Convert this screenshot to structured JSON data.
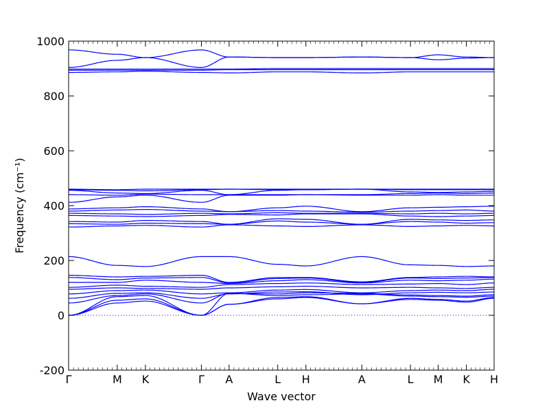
{
  "chart_data": {
    "type": "line",
    "xlabel": "Wave vector",
    "ylabel": "Frequency (cm⁻¹)",
    "ylim": [
      -200,
      1000
    ],
    "yticks": [
      -200,
      0,
      200,
      400,
      600,
      800,
      1000
    ],
    "grid": false,
    "legend": "none",
    "line_color": "#0000ff",
    "zero_line_color": "#0000ff",
    "path_points": [
      {
        "label": "Γ",
        "x": 0.0
      },
      {
        "label": "M",
        "x": 1.0
      },
      {
        "label": "K",
        "x": 1.58
      },
      {
        "label": "Γ",
        "x": 2.73
      },
      {
        "label": "A",
        "x": 3.3
      },
      {
        "label": "L",
        "x": 4.3
      },
      {
        "label": "H",
        "x": 4.88
      },
      {
        "label": "A",
        "x": 6.03
      },
      {
        "label": "L",
        "x": 7.03
      },
      {
        "label": "M",
        "x": 7.6
      },
      {
        "label": "K",
        "x": 8.18
      },
      {
        "label": "H",
        "x": 8.75
      }
    ],
    "bands": [
      {
        "x": [
          0,
          1,
          1.58,
          2.73,
          3.3,
          4.3,
          4.88,
          6.03,
          7.03,
          7.6,
          8.18,
          8.75
        ],
        "y": [
          0,
          45,
          52,
          0,
          40,
          60,
          65,
          42,
          58,
          55,
          48,
          62
        ]
      },
      {
        "x": [
          0,
          1,
          1.58,
          2.73,
          3.3,
          4.3,
          4.88,
          6.03,
          7.03,
          7.6,
          8.18,
          8.75
        ],
        "y": [
          0,
          55,
          60,
          0,
          40,
          65,
          68,
          42,
          62,
          58,
          52,
          65
        ]
      },
      {
        "x": [
          0,
          1,
          1.58,
          2.73,
          3.3,
          4.3,
          4.88,
          6.03,
          7.03,
          7.6,
          8.18,
          8.75
        ],
        "y": [
          0,
          68,
          72,
          0,
          80,
          72,
          75,
          78,
          70,
          68,
          66,
          70
        ]
      },
      {
        "x": [
          0,
          1,
          1.58,
          2.73,
          3.3,
          4.3,
          4.88,
          6.03,
          7.03,
          7.6,
          8.18,
          8.75
        ],
        "y": [
          45,
          72,
          78,
          45,
          80,
          78,
          82,
          80,
          74,
          72,
          70,
          75
        ]
      },
      {
        "x": [
          0,
          1,
          1.58,
          2.73,
          3.3,
          4.3,
          4.88,
          6.03,
          7.03,
          7.6,
          8.18,
          8.75
        ],
        "y": [
          62,
          80,
          82,
          62,
          78,
          85,
          86,
          75,
          82,
          84,
          82,
          85
        ]
      },
      {
        "x": [
          0,
          1,
          1.58,
          2.73,
          3.3,
          4.3,
          4.88,
          6.03,
          7.03,
          7.6,
          8.18,
          8.75
        ],
        "y": [
          78,
          90,
          92,
          78,
          82,
          92,
          94,
          82,
          90,
          92,
          90,
          95
        ]
      },
      {
        "x": [
          0,
          1,
          1.58,
          2.73,
          3.3,
          4.3,
          4.88,
          6.03,
          7.03,
          7.6,
          8.18,
          8.75
        ],
        "y": [
          95,
          100,
          98,
          95,
          100,
          104,
          106,
          100,
          102,
          100,
          98,
          102
        ]
      },
      {
        "x": [
          0,
          1,
          1.58,
          2.73,
          3.3,
          4.3,
          4.88,
          6.03,
          7.03,
          7.6,
          8.18,
          8.75
        ],
        "y": [
          102,
          110,
          106,
          102,
          112,
          116,
          118,
          112,
          114,
          116,
          112,
          118
        ]
      },
      {
        "x": [
          0,
          1,
          1.58,
          2.73,
          3.3,
          4.3,
          4.88,
          6.03,
          7.03,
          7.6,
          8.18,
          8.75
        ],
        "y": [
          120,
          120,
          128,
          120,
          116,
          126,
          130,
          118,
          128,
          126,
          128,
          132
        ]
      },
      {
        "x": [
          0,
          1,
          1.58,
          2.73,
          3.3,
          4.3,
          4.88,
          6.03,
          7.03,
          7.6,
          8.18,
          8.75
        ],
        "y": [
          138,
          130,
          136,
          138,
          118,
          134,
          136,
          120,
          136,
          134,
          136,
          138
        ]
      },
      {
        "x": [
          0,
          1,
          1.58,
          2.73,
          3.3,
          4.3,
          4.88,
          6.03,
          7.03,
          7.6,
          8.18,
          8.75
        ],
        "y": [
          146,
          140,
          142,
          146,
          120,
          138,
          138,
          122,
          138,
          140,
          142,
          140
        ]
      },
      {
        "x": [
          0,
          1,
          1.58,
          2.73,
          3.3,
          4.3,
          4.88,
          6.03,
          7.03,
          7.6,
          8.18,
          8.75
        ],
        "y": [
          214,
          182,
          178,
          214,
          214,
          186,
          180,
          214,
          184,
          182,
          178,
          180
        ]
      },
      {
        "x": [
          0,
          1,
          1.58,
          2.73,
          3.3,
          4.3,
          4.88,
          6.03,
          7.03,
          7.6,
          8.18,
          8.75
        ],
        "y": [
          322,
          326,
          328,
          322,
          330,
          326,
          324,
          330,
          324,
          326,
          328,
          326
        ]
      },
      {
        "x": [
          0,
          1,
          1.58,
          2.73,
          3.3,
          4.3,
          4.88,
          6.03,
          7.03,
          7.6,
          8.18,
          8.75
        ],
        "y": [
          334,
          332,
          336,
          334,
          332,
          344,
          340,
          332,
          342,
          340,
          336,
          338
        ]
      },
      {
        "x": [
          0,
          1,
          1.58,
          2.73,
          3.3,
          4.3,
          4.88,
          6.03,
          7.03,
          7.6,
          8.18,
          8.75
        ],
        "y": [
          342,
          340,
          346,
          342,
          332,
          352,
          350,
          332,
          350,
          348,
          346,
          348
        ]
      },
      {
        "x": [
          0,
          1,
          1.58,
          2.73,
          3.3,
          4.3,
          4.88,
          6.03,
          7.03,
          7.6,
          8.18,
          8.75
        ],
        "y": [
          364,
          362,
          360,
          364,
          368,
          366,
          370,
          370,
          362,
          360,
          362,
          364
        ]
      },
      {
        "x": [
          0,
          1,
          1.58,
          2.73,
          3.3,
          4.3,
          4.88,
          6.03,
          7.03,
          7.6,
          8.18,
          8.75
        ],
        "y": [
          372,
          370,
          368,
          372,
          370,
          374,
          372,
          372,
          370,
          372,
          370,
          372
        ]
      },
      {
        "x": [
          0,
          1,
          1.58,
          2.73,
          3.3,
          4.3,
          4.88,
          6.03,
          7.03,
          7.6,
          8.18,
          8.75
        ],
        "y": [
          380,
          384,
          386,
          380,
          378,
          382,
          380,
          376,
          380,
          382,
          384,
          380
        ]
      },
      {
        "x": [
          0,
          1,
          1.58,
          2.73,
          3.3,
          4.3,
          4.88,
          6.03,
          7.03,
          7.6,
          8.18,
          8.75
        ],
        "y": [
          388,
          392,
          396,
          388,
          378,
          392,
          398,
          378,
          392,
          394,
          396,
          398
        ]
      },
      {
        "x": [
          0,
          1,
          1.58,
          2.73,
          3.3,
          4.3,
          4.88,
          6.03,
          7.03,
          7.6,
          8.18,
          8.75
        ],
        "y": [
          412,
          432,
          438,
          412,
          438,
          438,
          440,
          438,
          438,
          440,
          438,
          438
        ]
      },
      {
        "x": [
          0,
          1,
          1.58,
          2.73,
          3.3,
          4.3,
          4.88,
          6.03,
          7.03,
          7.6,
          8.18,
          8.75
        ],
        "y": [
          440,
          438,
          442,
          440,
          440,
          440,
          440,
          440,
          444,
          446,
          444,
          446
        ]
      },
      {
        "x": [
          0,
          1,
          1.58,
          2.73,
          3.3,
          4.3,
          4.88,
          6.03,
          7.03,
          7.6,
          8.18,
          8.75
        ],
        "y": [
          456,
          446,
          444,
          456,
          440,
          456,
          458,
          460,
          450,
          448,
          450,
          452
        ]
      },
      {
        "x": [
          0,
          1,
          1.58,
          2.73,
          3.3,
          4.3,
          4.88,
          6.03,
          7.03,
          7.6,
          8.18,
          8.75
        ],
        "y": [
          458,
          456,
          454,
          458,
          460,
          458,
          458,
          460,
          458,
          458,
          458,
          458
        ]
      },
      {
        "x": [
          0,
          1,
          1.58,
          2.73,
          3.3,
          4.3,
          4.88,
          6.03,
          7.03,
          7.6,
          8.18,
          8.75
        ],
        "y": [
          460,
          458,
          460,
          460,
          460,
          460,
          460,
          460,
          460,
          460,
          460,
          460
        ]
      },
      {
        "x": [
          0,
          1,
          1.58,
          2.73,
          3.3,
          4.3,
          4.88,
          6.03,
          7.03,
          7.6,
          8.18,
          8.75
        ],
        "y": [
          886,
          888,
          890,
          886,
          884,
          888,
          888,
          884,
          888,
          888,
          888,
          888
        ]
      },
      {
        "x": [
          0,
          1,
          1.58,
          2.73,
          3.3,
          4.3,
          4.88,
          6.03,
          7.03,
          7.6,
          8.18,
          8.75
        ],
        "y": [
          894,
          894,
          894,
          894,
          896,
          896,
          896,
          896,
          896,
          896,
          896,
          896
        ]
      },
      {
        "x": [
          0,
          1,
          1.58,
          2.73,
          3.3,
          4.3,
          4.88,
          6.03,
          7.03,
          7.6,
          8.18,
          8.75
        ],
        "y": [
          898,
          898,
          898,
          898,
          898,
          900,
          900,
          900,
          900,
          900,
          900,
          900
        ]
      },
      {
        "x": [
          0,
          1,
          1.58,
          2.73,
          3.3,
          4.3,
          4.88,
          6.03,
          7.03,
          7.6,
          8.18,
          8.75
        ],
        "y": [
          904,
          930,
          940,
          904,
          942,
          940,
          940,
          942,
          940,
          932,
          938,
          940
        ]
      },
      {
        "x": [
          0,
          1,
          1.58,
          2.73,
          3.3,
          4.3,
          4.88,
          6.03,
          7.03,
          7.6,
          8.18,
          8.75
        ],
        "y": [
          968,
          952,
          940,
          968,
          942,
          940,
          940,
          942,
          940,
          950,
          942,
          940
        ]
      }
    ]
  }
}
